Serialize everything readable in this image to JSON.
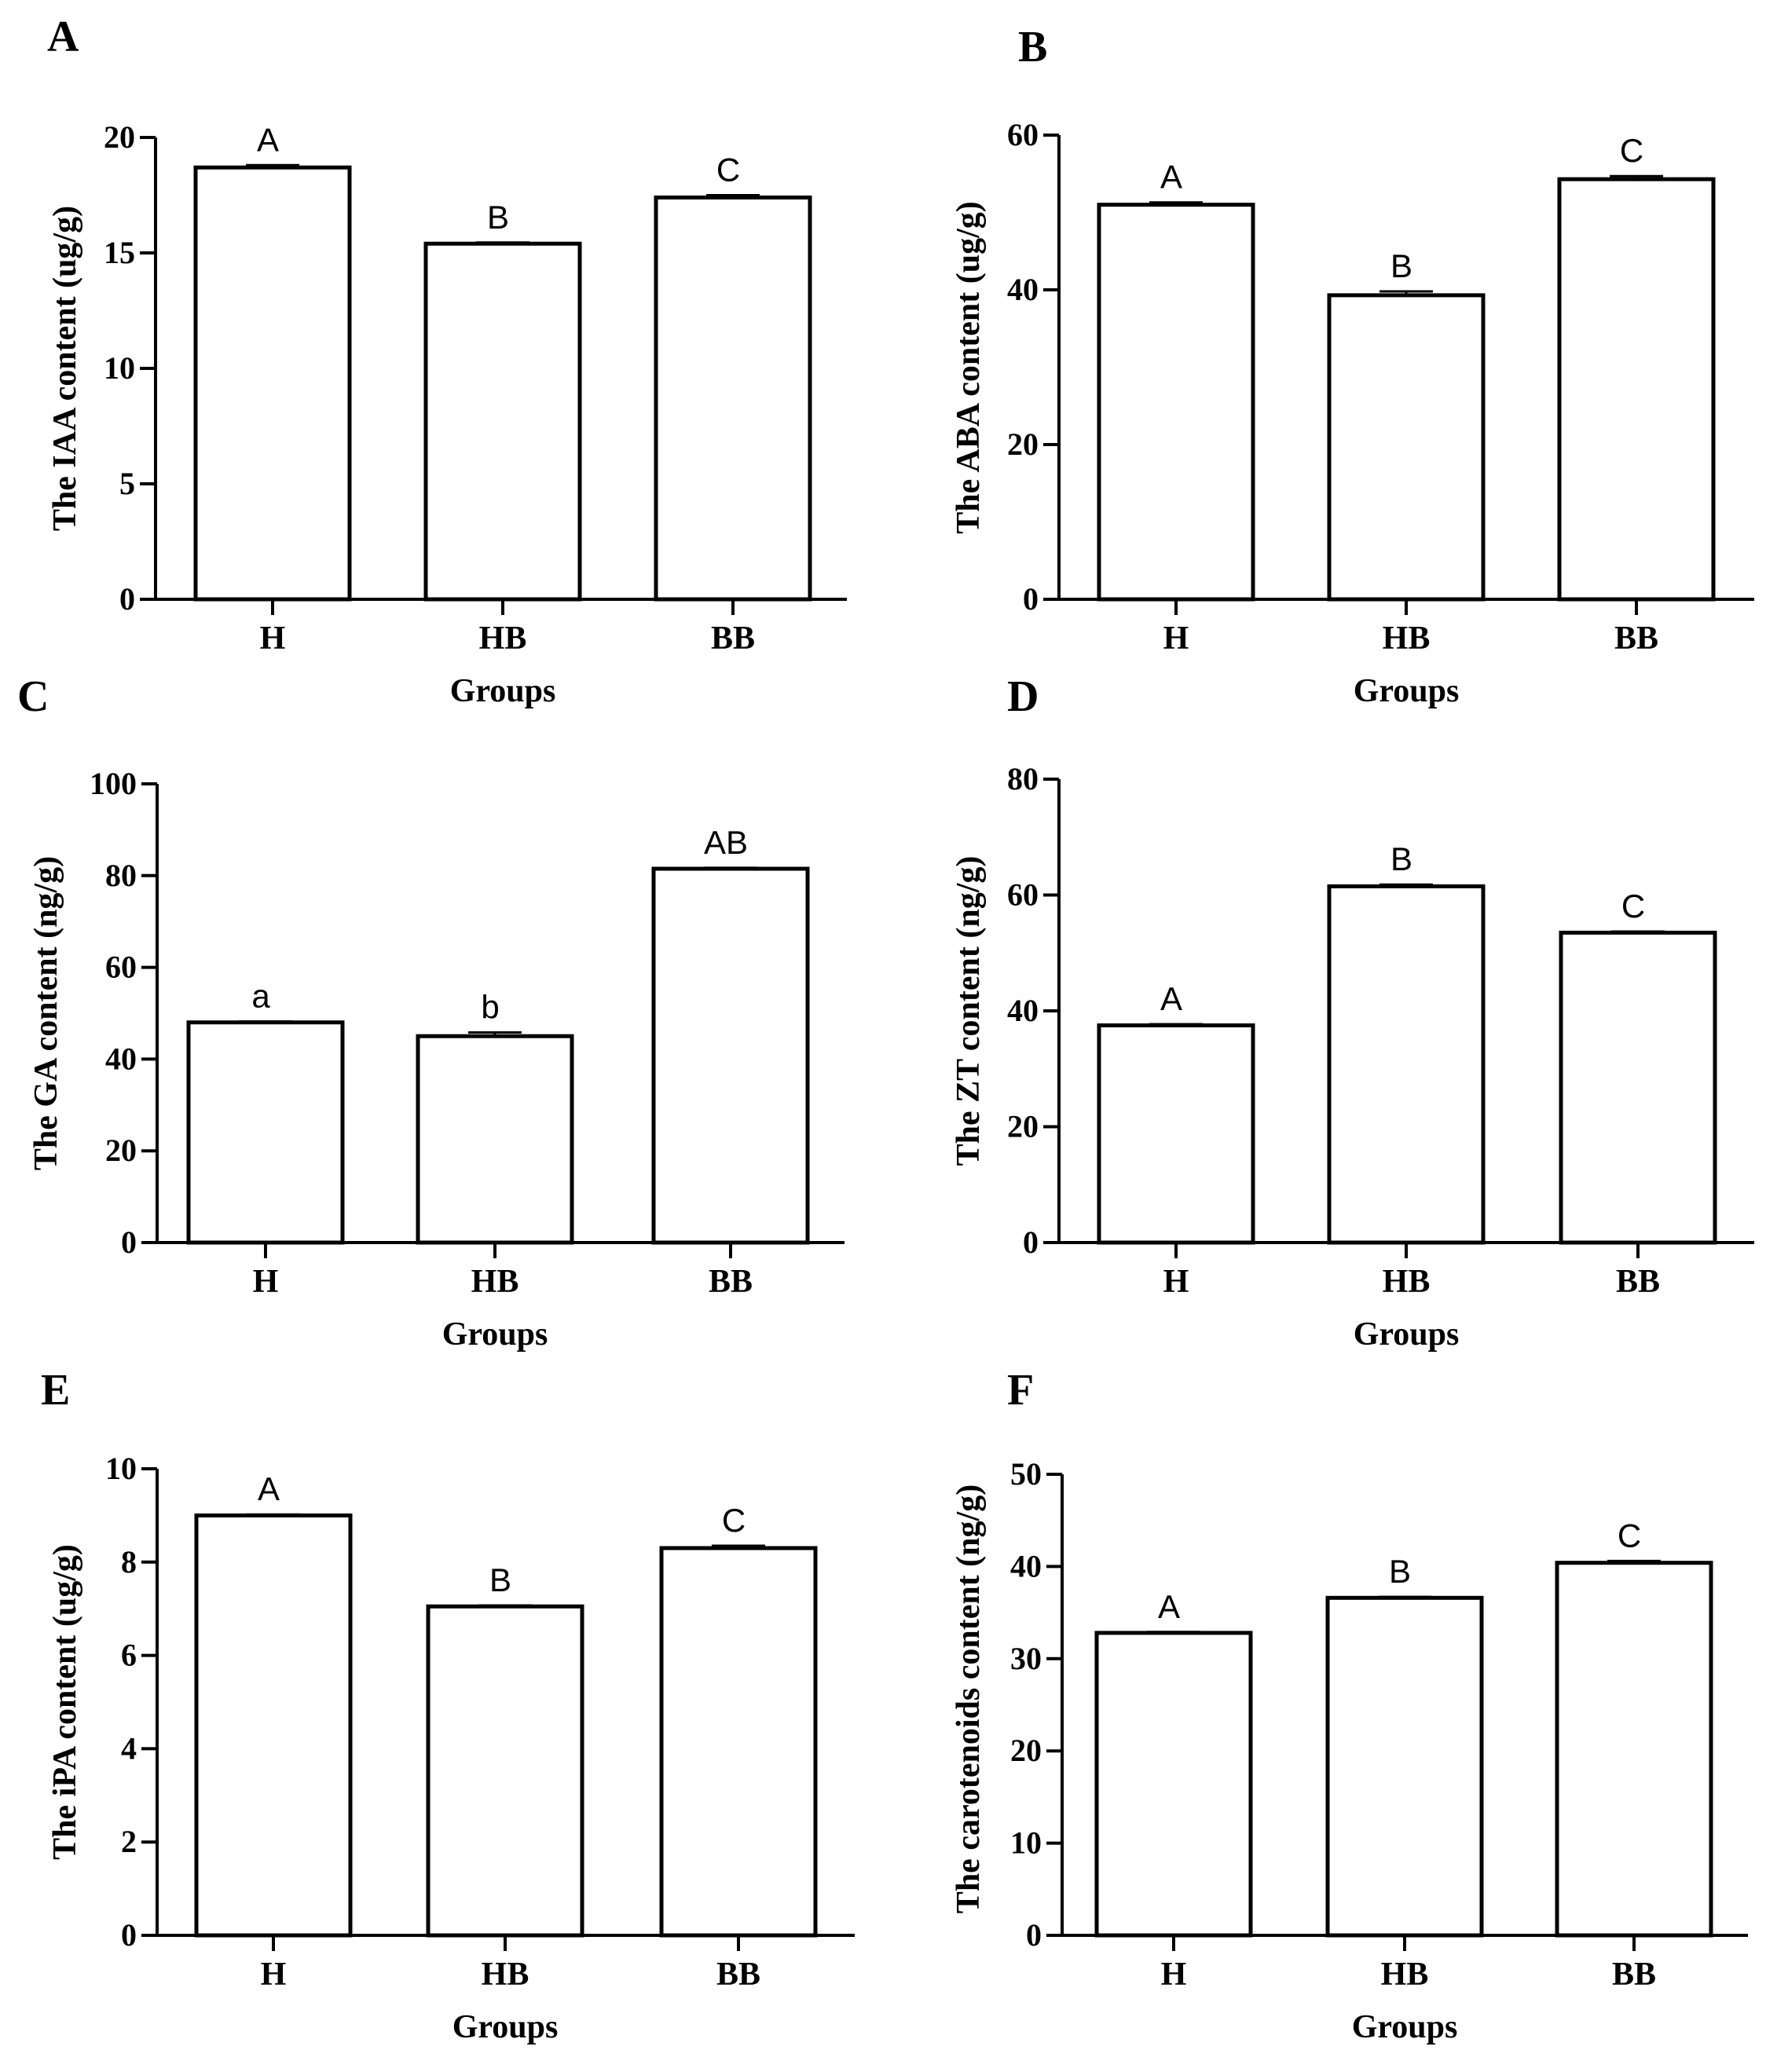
{
  "chart_data": [
    {
      "panel": "A",
      "type": "bar",
      "categories": [
        "H",
        "HB",
        "BB"
      ],
      "values": [
        18.7,
        15.4,
        17.4
      ],
      "errors": [
        0.1,
        0.05,
        0.1
      ],
      "significance": [
        "A",
        "B",
        "C"
      ],
      "ylabel": "The IAA content (ug/g)",
      "xlabel": "Groups",
      "ylim": [
        0,
        20
      ],
      "yticks": [
        0,
        5,
        10,
        15,
        20
      ]
    },
    {
      "panel": "B",
      "type": "bar",
      "categories": [
        "H",
        "HB",
        "BB"
      ],
      "values": [
        51.0,
        39.3,
        54.3
      ],
      "errors": [
        0.3,
        0.5,
        0.4
      ],
      "significance": [
        "A",
        "B",
        "C"
      ],
      "ylabel": "The ABA content (ug/g)",
      "xlabel": "Groups",
      "ylim": [
        0,
        60
      ],
      "yticks": [
        0,
        20,
        40,
        60
      ]
    },
    {
      "panel": "C",
      "type": "bar",
      "categories": [
        "H",
        "HB",
        "BB"
      ],
      "values": [
        48.0,
        45.0,
        81.5
      ],
      "errors": [
        0.2,
        0.8,
        0.2
      ],
      "significance": [
        "a",
        "b",
        "AB"
      ],
      "ylabel": "The GA content (ng/g)",
      "xlabel": "Groups",
      "ylim": [
        0,
        100
      ],
      "yticks": [
        0,
        20,
        40,
        60,
        80,
        100
      ]
    },
    {
      "panel": "D",
      "type": "bar",
      "categories": [
        "H",
        "HB",
        "BB"
      ],
      "values": [
        37.5,
        61.5,
        53.5
      ],
      "errors": [
        0.2,
        0.3,
        0.2
      ],
      "significance": [
        "A",
        "B",
        "C"
      ],
      "ylabel": "The ZT content (ng/g)",
      "xlabel": "Groups",
      "ylim": [
        0,
        80
      ],
      "yticks": [
        0,
        20,
        40,
        60,
        80
      ]
    },
    {
      "panel": "E",
      "type": "bar",
      "categories": [
        "H",
        "HB",
        "BB"
      ],
      "values": [
        9.0,
        7.05,
        8.3
      ],
      "errors": [
        0.02,
        0.02,
        0.05
      ],
      "significance": [
        "A",
        "B",
        "C"
      ],
      "ylabel": "The iPA content (ug/g)",
      "xlabel": "Groups",
      "ylim": [
        0,
        10
      ],
      "yticks": [
        0,
        2,
        4,
        6,
        8,
        10
      ]
    },
    {
      "panel": "F",
      "type": "bar",
      "categories": [
        "H",
        "HB",
        "BB"
      ],
      "values": [
        32.8,
        36.6,
        40.4
      ],
      "errors": [
        0.1,
        0.1,
        0.2
      ],
      "significance": [
        "A",
        "B",
        "C"
      ],
      "ylabel": "The carotenoids content (ng/g)",
      "xlabel": "Groups",
      "ylim": [
        0,
        50
      ],
      "yticks": [
        0,
        10,
        20,
        30,
        40,
        50
      ]
    }
  ]
}
